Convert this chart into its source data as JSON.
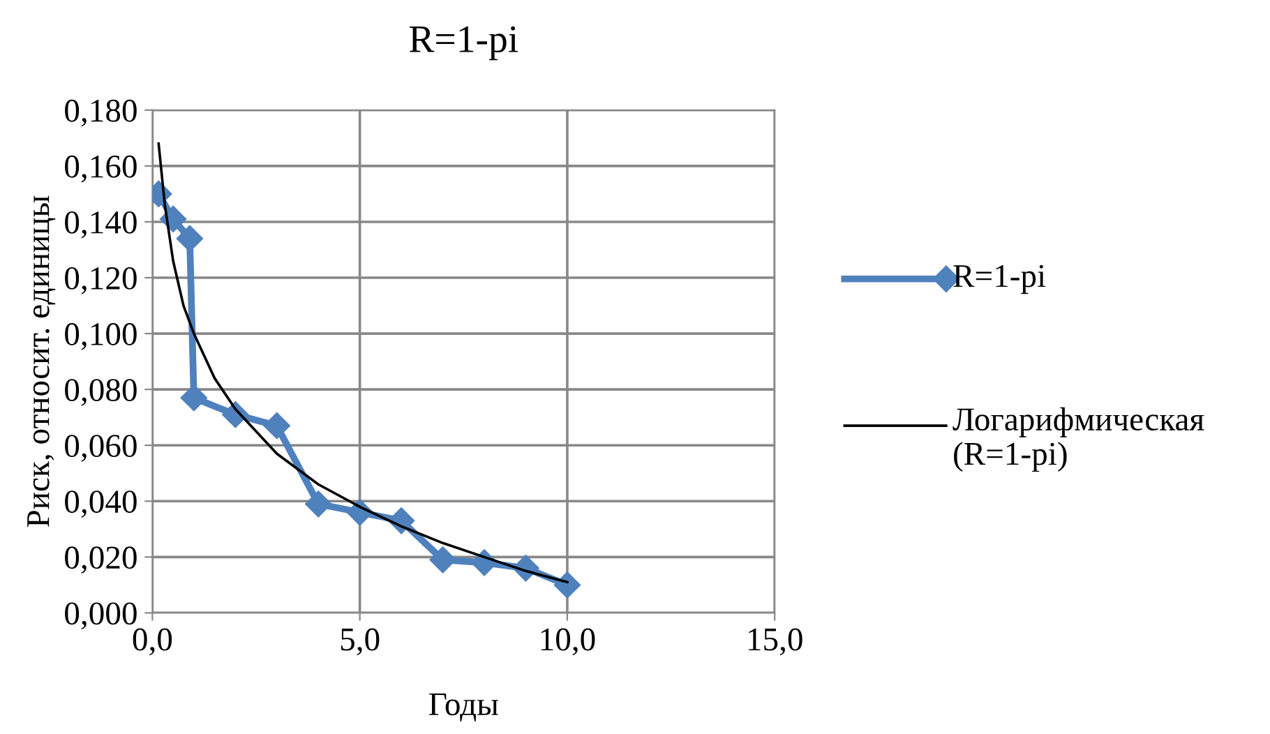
{
  "chart_data": {
    "type": "line",
    "title": "R=1-pi",
    "xlabel": "Годы",
    "ylabel": "Риск, относит. единицы",
    "xlim": [
      0,
      15
    ],
    "xticks": [
      {
        "value": 0,
        "label": "0,0"
      },
      {
        "value": 5,
        "label": "5,0"
      },
      {
        "value": 10,
        "label": "10,0"
      },
      {
        "value": 15,
        "label": "15,0"
      }
    ],
    "ylim": [
      0,
      0.18
    ],
    "yticks": [
      {
        "value": 0,
        "label": "0,000"
      },
      {
        "value": 0.02,
        "label": "0,020"
      },
      {
        "value": 0.04,
        "label": "0,040"
      },
      {
        "value": 0.06,
        "label": "0,060"
      },
      {
        "value": 0.08,
        "label": "0,080"
      },
      {
        "value": 0.1,
        "label": "0,100"
      },
      {
        "value": 0.12,
        "label": "0,120"
      },
      {
        "value": 0.14,
        "label": "0,140"
      },
      {
        "value": 0.16,
        "label": "0,160"
      },
      {
        "value": 0.18,
        "label": "0,180"
      }
    ],
    "grid": true,
    "legend": "right",
    "series": [
      {
        "name": "R=1-pi",
        "color": "#4f81bd",
        "marker": "diamond",
        "line_style": "solid",
        "x": [
          0.15,
          0.5,
          0.9,
          1,
          2,
          3,
          4,
          5,
          6,
          7,
          8,
          9,
          10
        ],
        "values": [
          0.15,
          0.141,
          0.134,
          0.077,
          0.071,
          0.067,
          0.039,
          0.036,
          0.033,
          0.019,
          0.018,
          0.016,
          0.01
        ]
      },
      {
        "name": "Логарифмическая (R=1-pi)",
        "color": "#000000",
        "marker": "none",
        "line_style": "solid",
        "x": [
          0.15,
          0.3,
          0.5,
          0.75,
          1,
          1.5,
          2,
          3,
          4,
          5,
          6,
          7,
          8,
          9,
          10
        ],
        "values": [
          0.168,
          0.146,
          0.126,
          0.11,
          0.1,
          0.084,
          0.073,
          0.057,
          0.046,
          0.038,
          0.031,
          0.025,
          0.02,
          0.015,
          0.011
        ]
      }
    ]
  }
}
